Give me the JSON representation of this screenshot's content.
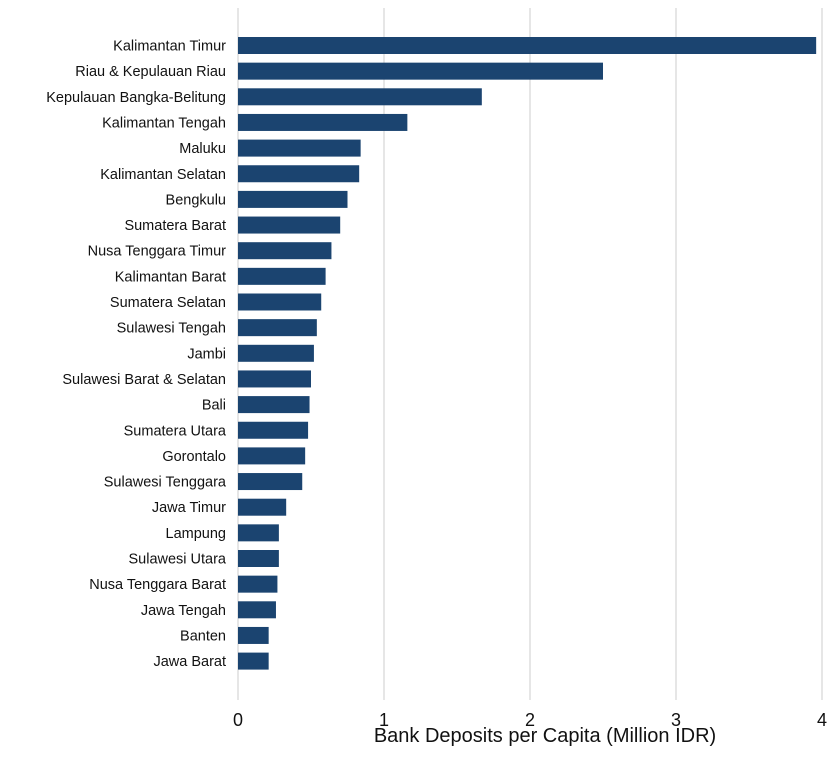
{
  "chart_data": {
    "type": "bar",
    "orientation": "horizontal",
    "title": "",
    "xlabel": "Bank Deposits per Capita (Million IDR)",
    "ylabel": "",
    "xlim": [
      0,
      4
    ],
    "x_ticks": [
      "0",
      "1",
      "2",
      "3",
      "4"
    ],
    "grid": "vertical",
    "bar_color": "#1b4470",
    "categories": [
      "Kalimantan Timur",
      "Riau & Kepulauan Riau",
      "Kepulauan Bangka-Belitung",
      "Kalimantan Tengah",
      "Maluku",
      "Kalimantan Selatan",
      "Bengkulu",
      "Sumatera Barat",
      "Nusa Tenggara Timur",
      "Kalimantan Barat",
      "Sumatera Selatan",
      "Sulawesi Tengah",
      "Jambi",
      "Sulawesi Barat & Selatan",
      "Bali",
      "Sumatera Utara",
      "Gorontalo",
      "Sulawesi Tenggara",
      "Jawa Timur",
      "Lampung",
      "Sulawesi Utara",
      "Nusa Tenggara Barat",
      "Jawa Tengah",
      "Banten",
      "Jawa Barat"
    ],
    "values": [
      3.96,
      2.5,
      1.67,
      1.16,
      0.84,
      0.83,
      0.75,
      0.7,
      0.64,
      0.6,
      0.57,
      0.54,
      0.52,
      0.5,
      0.49,
      0.48,
      0.46,
      0.44,
      0.33,
      0.28,
      0.28,
      0.27,
      0.26,
      0.21,
      0.21
    ]
  }
}
